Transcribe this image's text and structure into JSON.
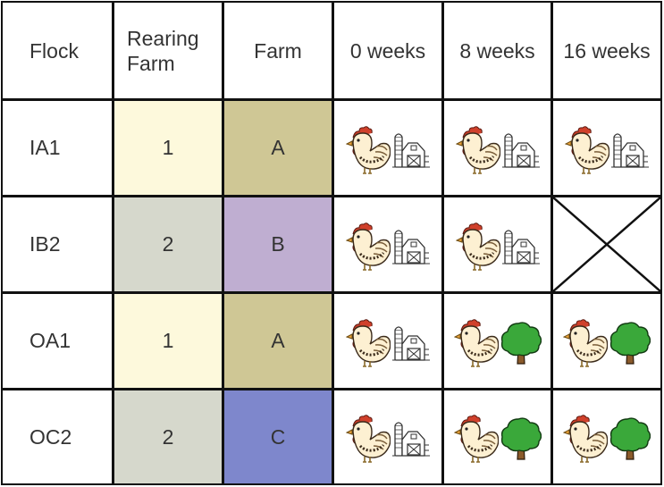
{
  "header": {
    "flock": "Flock",
    "rearing_farm": "Rearing Farm",
    "farm": "Farm",
    "w0": "0 weeks",
    "w8": "8 weeks",
    "w16": "16 weeks"
  },
  "rows": [
    {
      "flock": "IA1",
      "rearing": "1",
      "farm": "A",
      "w0": "barn",
      "w8": "barn",
      "w16": "barn"
    },
    {
      "flock": "IB2",
      "rearing": "2",
      "farm": "B",
      "w0": "barn",
      "w8": "barn",
      "w16": "none"
    },
    {
      "flock": "OA1",
      "rearing": "1",
      "farm": "A",
      "w0": "barn",
      "w8": "tree",
      "w16": "tree"
    },
    {
      "flock": "OC2",
      "rearing": "2",
      "farm": "C",
      "w0": "barn",
      "w8": "tree",
      "w16": "tree"
    }
  ],
  "colors": {
    "rearing_1": "#fdf9dc",
    "rearing_2": "#d6d8cc",
    "farm_A": "#cfc795",
    "farm_B": "#bfaed1",
    "farm_C": "#7e87cc"
  }
}
